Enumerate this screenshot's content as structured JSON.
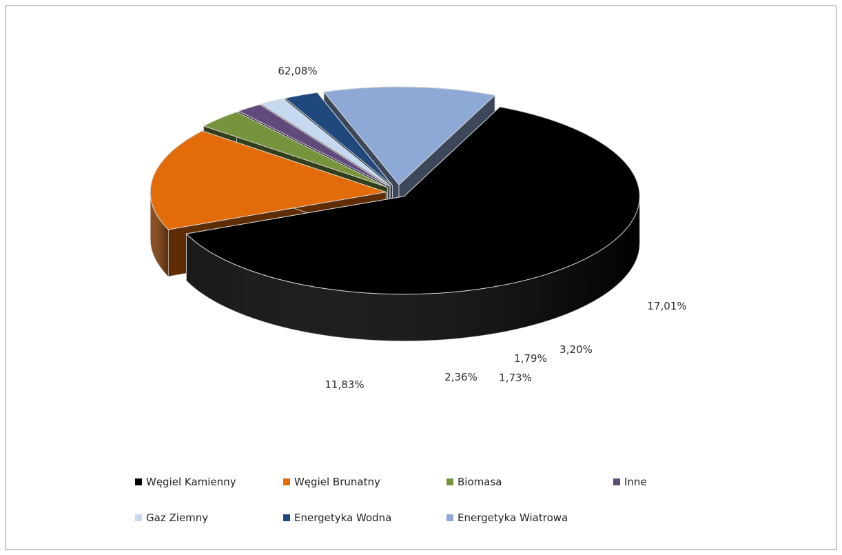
{
  "chart_data": {
    "type": "pie",
    "title": "",
    "categories": [
      "Węgiel Kamienny",
      "Węgiel Brunatny",
      "Biomasa",
      "Inne",
      "Gaz Ziemny",
      "Energetyka Wodna",
      "Energetyka Wiatrowa"
    ],
    "values": [
      62.08,
      17.01,
      3.2,
      1.79,
      1.73,
      2.36,
      11.83
    ],
    "data_labels": [
      "62,08%",
      "17,01%",
      "3,20%",
      "1,79%",
      "1,73%",
      "2,36%",
      "11,83%"
    ],
    "colors": [
      "#000000",
      "#e36c0a",
      "#77933c",
      "#604a7b",
      "#c6d9f1",
      "#1f497d",
      "#8ea9d5"
    ],
    "legend_position": "bottom",
    "three_d": true,
    "exploded": true
  }
}
